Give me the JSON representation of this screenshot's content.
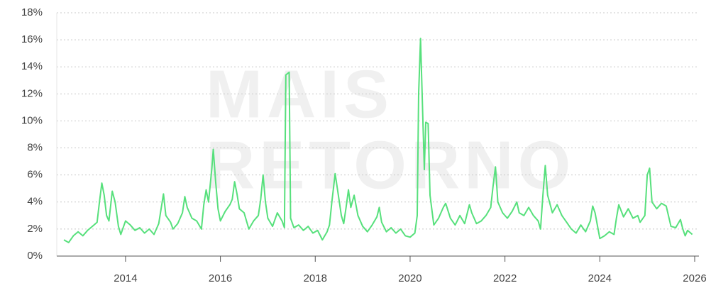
{
  "watermark": [
    "MAIS",
    "RETORNO"
  ],
  "chart_data": {
    "type": "line",
    "x": [
      2012.7,
      2012.8,
      2012.9,
      2013.0,
      2013.1,
      2013.2,
      2013.3,
      2013.4,
      2013.45,
      2013.5,
      2013.55,
      2013.6,
      2013.65,
      2013.72,
      2013.78,
      2013.85,
      2013.9,
      2014.0,
      2014.1,
      2014.2,
      2014.3,
      2014.4,
      2014.5,
      2014.6,
      2014.7,
      2014.75,
      2014.8,
      2014.85,
      2014.95,
      2015.0,
      2015.1,
      2015.2,
      2015.25,
      2015.3,
      2015.4,
      2015.5,
      2015.6,
      2015.65,
      2015.7,
      2015.75,
      2015.82,
      2015.85,
      2015.9,
      2015.95,
      2016.0,
      2016.1,
      2016.2,
      2016.25,
      2016.3,
      2016.35,
      2016.4,
      2016.5,
      2016.6,
      2016.7,
      2016.8,
      2016.85,
      2016.9,
      2016.95,
      2017.0,
      2017.1,
      2017.2,
      2017.3,
      2017.35,
      2017.38,
      2017.45,
      2017.48,
      2017.55,
      2017.65,
      2017.75,
      2017.85,
      2017.95,
      2018.05,
      2018.15,
      2018.25,
      2018.3,
      2018.35,
      2018.42,
      2018.5,
      2018.55,
      2018.6,
      2018.65,
      2018.7,
      2018.75,
      2018.82,
      2018.9,
      2019.0,
      2019.1,
      2019.2,
      2019.3,
      2019.35,
      2019.4,
      2019.5,
      2019.6,
      2019.7,
      2019.8,
      2019.9,
      2020.0,
      2020.1,
      2020.15,
      2020.18,
      2020.22,
      2020.27,
      2020.3,
      2020.33,
      2020.38,
      2020.42,
      2020.5,
      2020.6,
      2020.7,
      2020.75,
      2020.85,
      2020.95,
      2021.05,
      2021.15,
      2021.25,
      2021.3,
      2021.4,
      2021.5,
      2021.6,
      2021.7,
      2021.75,
      2021.8,
      2021.85,
      2021.95,
      2022.05,
      2022.15,
      2022.25,
      2022.3,
      2022.4,
      2022.5,
      2022.6,
      2022.7,
      2022.75,
      2022.8,
      2022.85,
      2022.9,
      2023.0,
      2023.1,
      2023.2,
      2023.3,
      2023.4,
      2023.5,
      2023.6,
      2023.7,
      2023.8,
      2023.85,
      2023.9,
      2024.0,
      2024.1,
      2024.2,
      2024.3,
      2024.35,
      2024.4,
      2024.5,
      2024.6,
      2024.7,
      2024.8,
      2024.85,
      2024.95,
      2025.0,
      2025.05,
      2025.1,
      2025.2,
      2025.3,
      2025.4,
      2025.5,
      2025.6,
      2025.7,
      2025.75,
      2025.8,
      2025.85,
      2025.95
    ],
    "series": [
      {
        "color": "#57e07c",
        "values": [
          1.2,
          1.0,
          1.5,
          1.8,
          1.5,
          1.9,
          2.2,
          2.5,
          4.0,
          5.4,
          4.5,
          3.0,
          2.6,
          4.8,
          4.0,
          2.2,
          1.6,
          2.6,
          2.3,
          1.9,
          2.1,
          1.7,
          2.0,
          1.6,
          2.4,
          3.5,
          4.6,
          3.0,
          2.5,
          2.0,
          2.4,
          3.2,
          4.4,
          3.6,
          2.8,
          2.6,
          2.0,
          3.8,
          4.9,
          4.0,
          6.5,
          7.9,
          5.5,
          3.5,
          2.6,
          3.3,
          3.8,
          4.2,
          5.5,
          4.6,
          3.5,
          3.2,
          2.0,
          2.6,
          3.0,
          4.2,
          6.0,
          4.0,
          2.8,
          2.2,
          3.2,
          2.6,
          2.1,
          13.4,
          13.6,
          2.8,
          2.1,
          2.3,
          1.9,
          2.2,
          1.7,
          1.9,
          1.2,
          1.8,
          2.3,
          4.0,
          6.1,
          4.2,
          3.0,
          2.4,
          3.6,
          4.9,
          3.6,
          4.5,
          3.0,
          2.2,
          1.8,
          2.3,
          2.9,
          3.6,
          2.5,
          1.8,
          2.1,
          1.7,
          2.0,
          1.5,
          1.4,
          1.7,
          3.0,
          12.0,
          16.1,
          10.0,
          6.4,
          9.9,
          9.8,
          4.5,
          2.3,
          2.8,
          3.6,
          3.9,
          2.8,
          2.3,
          3.0,
          2.4,
          3.8,
          3.2,
          2.4,
          2.6,
          3.0,
          3.6,
          5.2,
          6.6,
          4.0,
          3.2,
          2.8,
          3.3,
          4.0,
          3.2,
          3.0,
          3.6,
          3.0,
          2.6,
          2.0,
          4.5,
          6.7,
          4.5,
          3.2,
          3.8,
          3.0,
          2.5,
          2.0,
          1.7,
          2.3,
          1.8,
          2.6,
          3.7,
          3.2,
          1.3,
          1.5,
          1.8,
          1.6,
          2.8,
          3.8,
          2.9,
          3.5,
          2.8,
          3.0,
          2.5,
          3.0,
          6.0,
          6.5,
          4.0,
          3.5,
          3.9,
          3.7,
          2.2,
          2.1,
          2.7,
          2.0,
          1.5,
          1.9,
          1.6
        ]
      }
    ],
    "xlim": [
      2012.55,
      2026.09
    ],
    "xticks": [
      2014,
      2016,
      2018,
      2020,
      2022,
      2024,
      2026
    ],
    "ylim": [
      0,
      18
    ],
    "yticks": [
      {
        "value": 0,
        "label": "0%"
      },
      {
        "value": 2,
        "label": "2%"
      },
      {
        "value": 4,
        "label": "4%"
      },
      {
        "value": 6,
        "label": "6%"
      },
      {
        "value": 8,
        "label": "8%"
      },
      {
        "value": 10,
        "label": "10%"
      },
      {
        "value": 12,
        "label": "12%"
      },
      {
        "value": 14,
        "label": "14%"
      },
      {
        "value": 16,
        "label": "16%"
      },
      {
        "value": 18,
        "label": "18%"
      }
    ],
    "grid": true
  }
}
